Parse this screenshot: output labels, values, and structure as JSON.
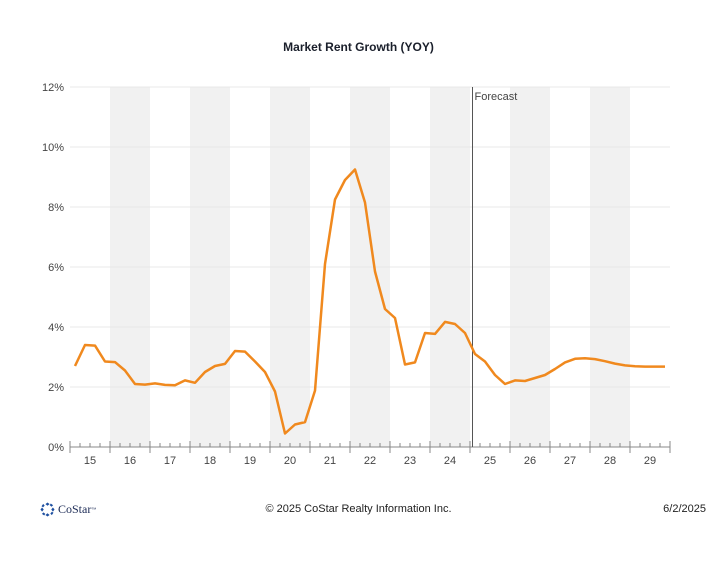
{
  "chart_data": {
    "type": "line",
    "title": "Market Rent Growth (YOY)",
    "xlabel": "",
    "ylabel": "",
    "ylim": [
      0,
      12
    ],
    "y_ticks": [
      "0%",
      "2%",
      "4%",
      "6%",
      "8%",
      "10%",
      "12%"
    ],
    "y_tick_values": [
      0,
      2,
      4,
      6,
      8,
      10,
      12
    ],
    "x_categories": [
      "15",
      "16",
      "17",
      "18",
      "19",
      "20",
      "21",
      "22",
      "23",
      "24",
      "25",
      "26",
      "27",
      "28",
      "29"
    ],
    "x_range_quarters": [
      0,
      60
    ],
    "forecast_label": "Forecast",
    "forecast_start_quarter": 40.25,
    "grid": true,
    "series": [
      {
        "name": "Market Rent Growth (YOY)",
        "color": "#f0891e",
        "x_quarters": [
          0.5,
          1.5,
          2.5,
          3.5,
          4.5,
          5.5,
          6.5,
          7.5,
          8.5,
          9.5,
          10.5,
          11.5,
          12.5,
          13.5,
          14.5,
          15.5,
          16.5,
          17.5,
          18.5,
          19.5,
          20.5,
          21.5,
          22.5,
          23.5,
          24.5,
          25.5,
          26.5,
          27.5,
          28.5,
          29.5,
          30.5,
          31.5,
          32.5,
          33.5,
          34.5,
          35.5,
          36.5,
          37.5,
          38.5,
          39.5,
          40.5,
          41.5,
          42.5,
          43.5,
          44.5,
          45.5,
          46.5,
          47.5,
          48.5,
          49.5,
          50.5,
          51.5,
          52.5,
          53.5,
          54.5,
          55.5,
          56.5,
          57.5,
          58.5,
          59.5
        ],
        "values": [
          2.7,
          3.4,
          3.38,
          2.85,
          2.83,
          2.55,
          2.1,
          2.08,
          2.12,
          2.07,
          2.06,
          2.22,
          2.14,
          2.5,
          2.7,
          2.77,
          3.2,
          3.18,
          2.85,
          2.5,
          1.85,
          0.45,
          0.75,
          0.83,
          1.88,
          6.1,
          8.25,
          8.9,
          9.25,
          8.15,
          5.85,
          4.6,
          4.3,
          2.75,
          2.82,
          3.8,
          3.77,
          4.17,
          4.1,
          3.8,
          3.1,
          2.85,
          2.4,
          2.1,
          2.22,
          2.2,
          2.3,
          2.4,
          2.6,
          2.82,
          2.94,
          2.96,
          2.93,
          2.86,
          2.78,
          2.72,
          2.69,
          2.68,
          2.68,
          2.68
        ]
      }
    ]
  },
  "background_colors": {
    "band": "#f1f1f1",
    "grid": "#e8e8e8",
    "forecast_line": "#555555"
  },
  "footer": {
    "logo_text": "CoStar",
    "logo_tm": "™",
    "copyright": "© 2025 CoStar Realty Information Inc.",
    "date": "6/2/2025"
  }
}
